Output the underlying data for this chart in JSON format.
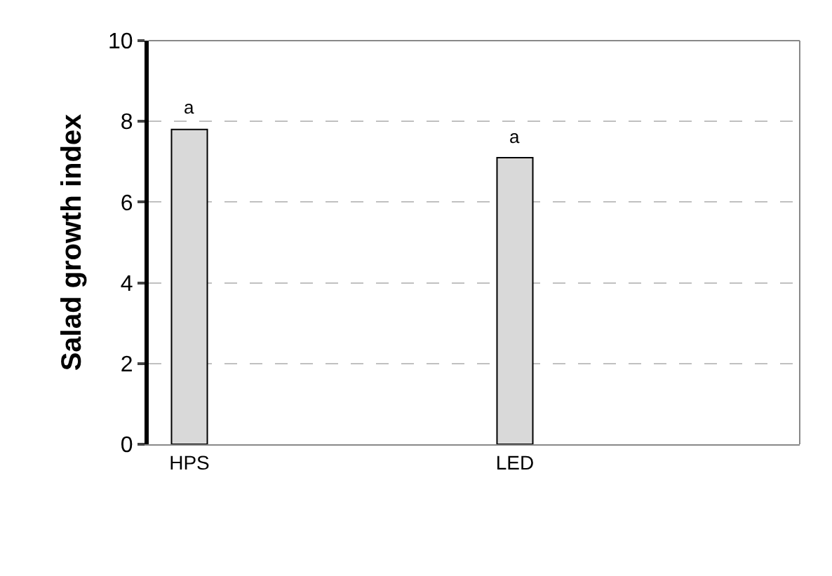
{
  "chart_data": {
    "type": "bar",
    "ylabel": "Salad growth index",
    "categories": [
      "HPS",
      "LED"
    ],
    "values": [
      7.8,
      7.1
    ],
    "color": "#d9d9d9",
    "ylim": [
      0,
      10
    ],
    "yticks": [
      0,
      2,
      4,
      6,
      8,
      10
    ],
    "grid": "y",
    "annotations": [
      {
        "text": "a",
        "x": "HPS",
        "y": 7.8
      },
      {
        "text": "a",
        "x": "LED",
        "y": 7.1
      }
    ]
  }
}
